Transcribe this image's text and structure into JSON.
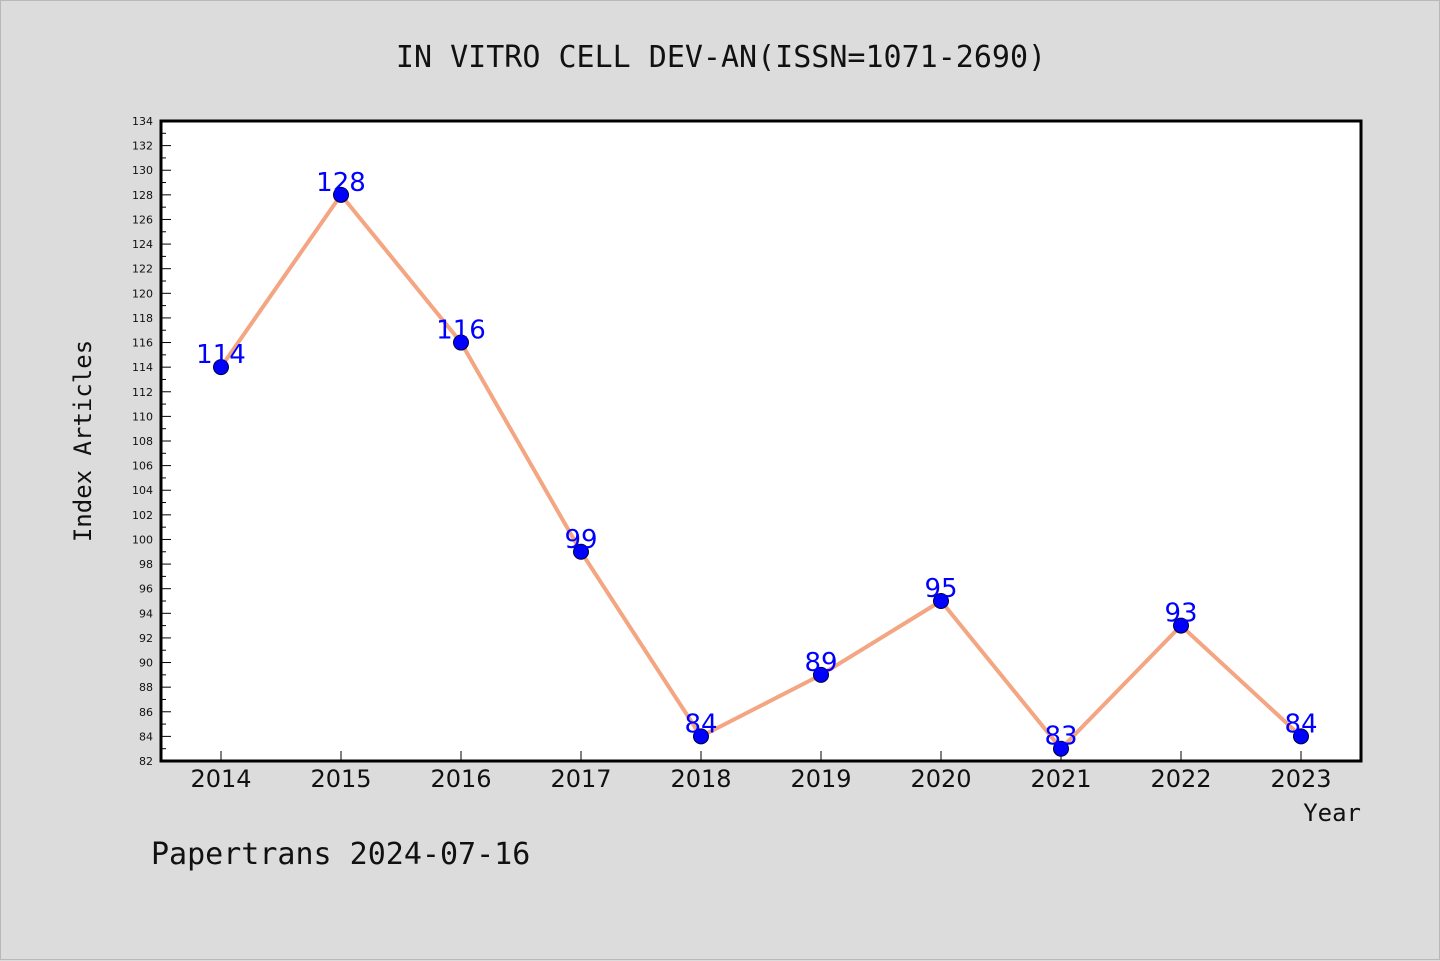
{
  "chart_data": {
    "type": "line",
    "title": "IN VITRO CELL DEV-AN(ISSN=1071-2690)",
    "xlabel": "Year",
    "ylabel": "Index Articles",
    "categories": [
      "2014",
      "2015",
      "2016",
      "2017",
      "2018",
      "2019",
      "2020",
      "2021",
      "2022",
      "2023"
    ],
    "series": [
      {
        "values": [
          114,
          128,
          116,
          99,
          84,
          89,
          95,
          83,
          93,
          84
        ]
      }
    ],
    "data_labels": [
      "114",
      "128",
      "116",
      "99",
      "84",
      "89",
      "95",
      "83",
      "93",
      "84"
    ],
    "ylim": [
      82,
      134
    ],
    "y_ticks": [
      "82",
      "84",
      "86",
      "88",
      "90",
      "92",
      "94",
      "96",
      "98",
      "100",
      "102",
      "104",
      "106",
      "108",
      "110",
      "112",
      "114",
      "116",
      "118",
      "120",
      "122",
      "124",
      "126",
      "128",
      "130",
      "132",
      "134"
    ],
    "grid": false,
    "colors": {
      "line": "#f4a582",
      "marker": "#0000ff",
      "label": "#0000ff",
      "background": "#dcdcdc",
      "plot_background": "#ffffff"
    }
  },
  "footer": {
    "text": "Papertrans 2024-07-16"
  }
}
